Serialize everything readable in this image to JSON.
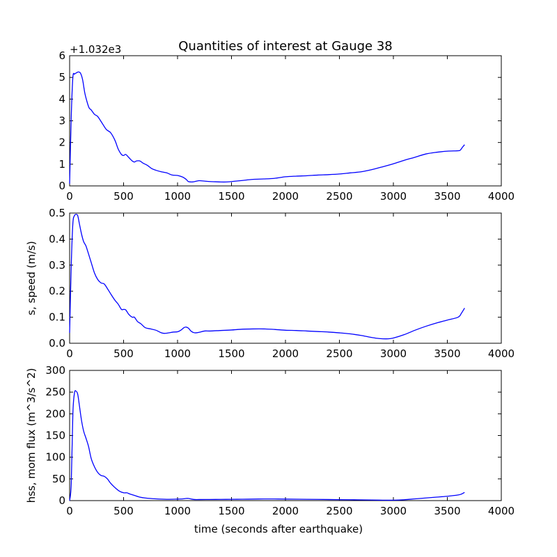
{
  "figure": {
    "title": "Quantities of interest at Gauge 38"
  },
  "chart_data": [
    {
      "type": "line",
      "title": "Quantities of interest at Gauge 38",
      "xlabel": "",
      "ylabel": "",
      "offset_label": "+1.032e3",
      "xlim": [
        0,
        4000
      ],
      "ylim": [
        0,
        6
      ],
      "xticks": [
        "0",
        "500",
        "1000",
        "1500",
        "2000",
        "2500",
        "3000",
        "3500",
        "4000"
      ],
      "yticks": [
        "0",
        "1",
        "2",
        "3",
        "4",
        "5",
        "6"
      ],
      "color": "#0000ff",
      "x": [
        0,
        15,
        30,
        45,
        60,
        80,
        100,
        120,
        140,
        160,
        180,
        200,
        230,
        260,
        300,
        340,
        380,
        420,
        450,
        480,
        500,
        520,
        550,
        580,
        600,
        620,
        650,
        680,
        720,
        760,
        800,
        850,
        900,
        950,
        1000,
        1050,
        1080,
        1100,
        1130,
        1160,
        1200,
        1250,
        1300,
        1350,
        1400,
        1450,
        1500,
        1600,
        1700,
        1800,
        1900,
        2000,
        2100,
        2200,
        2300,
        2400,
        2500,
        2600,
        2700,
        2800,
        2900,
        3000,
        3100,
        3200,
        3300,
        3400,
        3500,
        3600,
        3620,
        3640,
        3660
      ],
      "y": [
        0.1,
        3.2,
        5.0,
        5.15,
        5.2,
        5.25,
        5.2,
        4.9,
        4.3,
        3.9,
        3.6,
        3.5,
        3.3,
        3.2,
        2.9,
        2.6,
        2.45,
        2.1,
        1.7,
        1.45,
        1.4,
        1.45,
        1.3,
        1.15,
        1.1,
        1.15,
        1.15,
        1.05,
        0.95,
        0.8,
        0.72,
        0.65,
        0.6,
        0.5,
        0.48,
        0.4,
        0.3,
        0.2,
        0.18,
        0.2,
        0.24,
        0.22,
        0.2,
        0.19,
        0.18,
        0.18,
        0.2,
        0.25,
        0.3,
        0.32,
        0.35,
        0.42,
        0.45,
        0.47,
        0.5,
        0.52,
        0.55,
        0.6,
        0.65,
        0.75,
        0.88,
        1.02,
        1.18,
        1.32,
        1.47,
        1.55,
        1.6,
        1.62,
        1.65,
        1.78,
        1.9
      ]
    },
    {
      "type": "line",
      "title": "",
      "xlabel": "",
      "ylabel": "s, speed (m/s)",
      "xlim": [
        0,
        4000
      ],
      "ylim": [
        0,
        0.5
      ],
      "xticks": [
        "0",
        "500",
        "1000",
        "1500",
        "2000",
        "2500",
        "3000",
        "3500",
        "4000"
      ],
      "yticks": [
        "0.0",
        "0.1",
        "0.2",
        "0.3",
        "0.4",
        "0.5"
      ],
      "color": "#0000ff",
      "x": [
        0,
        15,
        30,
        45,
        60,
        75,
        90,
        110,
        130,
        150,
        170,
        200,
        230,
        260,
        290,
        320,
        350,
        380,
        420,
        450,
        480,
        500,
        520,
        550,
        580,
        600,
        630,
        660,
        700,
        750,
        800,
        850,
        880,
        920,
        960,
        1000,
        1030,
        1060,
        1080,
        1100,
        1130,
        1160,
        1200,
        1250,
        1300,
        1400,
        1500,
        1600,
        1700,
        1800,
        1900,
        2000,
        2100,
        2200,
        2300,
        2400,
        2500,
        2600,
        2700,
        2800,
        2870,
        2950,
        3000,
        3100,
        3200,
        3300,
        3400,
        3500,
        3600,
        3630,
        3660
      ],
      "y": [
        0.04,
        0.3,
        0.46,
        0.49,
        0.495,
        0.49,
        0.46,
        0.42,
        0.39,
        0.375,
        0.35,
        0.31,
        0.27,
        0.245,
        0.232,
        0.228,
        0.21,
        0.19,
        0.165,
        0.15,
        0.13,
        0.13,
        0.128,
        0.11,
        0.1,
        0.1,
        0.083,
        0.075,
        0.06,
        0.055,
        0.05,
        0.04,
        0.038,
        0.04,
        0.043,
        0.044,
        0.05,
        0.06,
        0.062,
        0.058,
        0.045,
        0.04,
        0.042,
        0.047,
        0.047,
        0.049,
        0.051,
        0.054,
        0.055,
        0.055,
        0.053,
        0.05,
        0.049,
        0.047,
        0.045,
        0.043,
        0.04,
        0.036,
        0.03,
        0.022,
        0.018,
        0.017,
        0.02,
        0.033,
        0.05,
        0.065,
        0.078,
        0.089,
        0.1,
        0.115,
        0.135
      ]
    },
    {
      "type": "line",
      "title": "",
      "xlabel": "time (seconds after earthquake)",
      "ylabel": "hss, mom flux (m^3/s^2)",
      "xlim": [
        0,
        4000
      ],
      "ylim": [
        0,
        300
      ],
      "xticks": [
        "0",
        "500",
        "1000",
        "1500",
        "2000",
        "2500",
        "3000",
        "3500",
        "4000"
      ],
      "yticks": [
        "0",
        "50",
        "100",
        "150",
        "200",
        "250",
        "300"
      ],
      "color": "#0000ff",
      "x": [
        0,
        15,
        30,
        45,
        60,
        75,
        90,
        110,
        130,
        150,
        175,
        200,
        230,
        260,
        290,
        320,
        350,
        380,
        420,
        460,
        500,
        530,
        560,
        600,
        650,
        700,
        800,
        900,
        1000,
        1050,
        1080,
        1100,
        1130,
        1160,
        1200,
        1300,
        1400,
        1500,
        1600,
        1700,
        1800,
        1900,
        2000,
        2200,
        2400,
        2600,
        2800,
        2900,
        3000,
        3100,
        3200,
        3300,
        3400,
        3500,
        3600,
        3630,
        3660
      ],
      "y": [
        0,
        40,
        200,
        248,
        252,
        245,
        220,
        185,
        160,
        145,
        125,
        97,
        78,
        65,
        58,
        56,
        50,
        40,
        30,
        22,
        18,
        18,
        15,
        12,
        8,
        6,
        4,
        3,
        3.5,
        4,
        5,
        5,
        3.5,
        2.5,
        2.5,
        2.6,
        2.8,
        3,
        3.2,
        3.5,
        3.8,
        3.8,
        3.5,
        3,
        2.5,
        2,
        1.4,
        1,
        1,
        2,
        4,
        6,
        8,
        10,
        13,
        15,
        19
      ]
    }
  ]
}
